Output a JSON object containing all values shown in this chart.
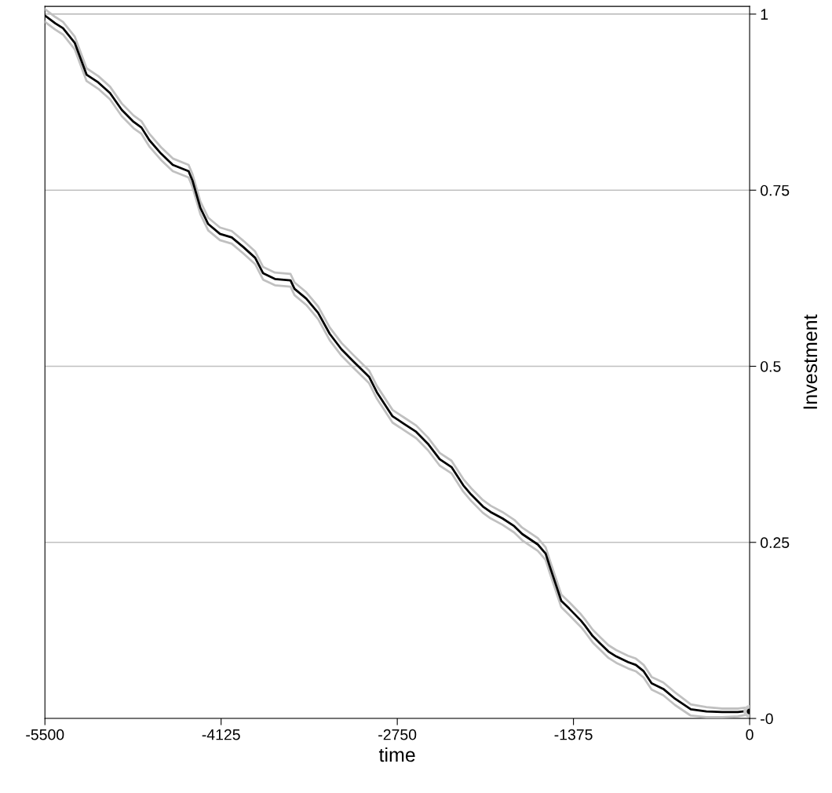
{
  "chart_data": {
    "type": "line",
    "xlabel": "time",
    "ylabel": "Investment",
    "grid": "y",
    "legend": false,
    "marker": "none",
    "line_style": "solid",
    "xlim": [
      -5500,
      0
    ],
    "xticks": [
      -5500,
      -4125,
      -2750,
      -1375,
      0
    ],
    "ylim": [
      0,
      1.011
    ],
    "yticks": [
      {
        "value": 0,
        "label": "-0"
      },
      0.25,
      0.5,
      0.75,
      1
    ],
    "x": [
      -5500,
      -5420,
      -5359,
      -5267,
      -5175,
      -5084,
      -4992,
      -4900,
      -4808,
      -4747,
      -4685,
      -4594,
      -4502,
      -4379,
      -4349,
      -4287,
      -4226,
      -4134,
      -4042,
      -3950,
      -3859,
      -3797,
      -3705,
      -3583,
      -3552,
      -3460,
      -3368,
      -3277,
      -3185,
      -3093,
      -2970,
      -2909,
      -2848,
      -2787,
      -2695,
      -2603,
      -2511,
      -2419,
      -2327,
      -2235,
      -2174,
      -2082,
      -2021,
      -1929,
      -1837,
      -1776,
      -1653,
      -1592,
      -1562,
      -1470,
      -1408,
      -1317,
      -1286,
      -1225,
      -1164,
      -1102,
      -1041,
      -949,
      -888,
      -827,
      -765,
      -674,
      -582,
      -459,
      -337,
      -214,
      -92,
      0
    ],
    "series": [
      {
        "color": "#c0c0c0",
        "values": [
          1.007,
          0.996,
          0.989,
          0.968,
          0.923,
          0.912,
          0.897,
          0.873,
          0.856,
          0.848,
          0.83,
          0.811,
          0.795,
          0.786,
          0.773,
          0.734,
          0.711,
          0.697,
          0.692,
          0.678,
          0.663,
          0.641,
          0.633,
          0.631,
          0.619,
          0.605,
          0.585,
          0.555,
          0.533,
          0.516,
          0.494,
          0.472,
          0.455,
          0.438,
          0.427,
          0.416,
          0.399,
          0.377,
          0.366,
          0.34,
          0.327,
          0.31,
          0.302,
          0.293,
          0.282,
          0.271,
          0.256,
          0.243,
          0.226,
          0.176,
          0.165,
          0.148,
          0.141,
          0.126,
          0.115,
          0.104,
          0.097,
          0.089,
          0.085,
          0.076,
          0.059,
          0.051,
          0.037,
          0.02,
          0.016,
          0.014,
          0.014,
          0.016
        ]
      },
      {
        "color": "#c0c0c0",
        "values": [
          0.989,
          0.978,
          0.971,
          0.95,
          0.905,
          0.894,
          0.879,
          0.855,
          0.838,
          0.83,
          0.812,
          0.793,
          0.777,
          0.768,
          0.755,
          0.716,
          0.693,
          0.679,
          0.674,
          0.66,
          0.645,
          0.623,
          0.615,
          0.613,
          0.601,
          0.587,
          0.567,
          0.537,
          0.515,
          0.498,
          0.476,
          0.454,
          0.437,
          0.42,
          0.409,
          0.398,
          0.381,
          0.359,
          0.348,
          0.322,
          0.309,
          0.292,
          0.284,
          0.275,
          0.264,
          0.253,
          0.238,
          0.225,
          0.208,
          0.158,
          0.147,
          0.13,
          0.123,
          0.108,
          0.097,
          0.086,
          0.079,
          0.071,
          0.067,
          0.058,
          0.041,
          0.033,
          0.019,
          0.004,
          0.002,
          0.002,
          0.003,
          0.006
        ]
      },
      {
        "color": "#000000",
        "values": [
          0.998,
          0.987,
          0.98,
          0.959,
          0.914,
          0.903,
          0.888,
          0.864,
          0.847,
          0.839,
          0.821,
          0.802,
          0.786,
          0.777,
          0.764,
          0.725,
          0.702,
          0.688,
          0.683,
          0.669,
          0.654,
          0.632,
          0.624,
          0.622,
          0.61,
          0.596,
          0.576,
          0.546,
          0.524,
          0.507,
          0.485,
          0.463,
          0.446,
          0.429,
          0.418,
          0.407,
          0.39,
          0.368,
          0.357,
          0.331,
          0.318,
          0.301,
          0.293,
          0.284,
          0.273,
          0.262,
          0.247,
          0.234,
          0.217,
          0.167,
          0.156,
          0.139,
          0.132,
          0.117,
          0.106,
          0.095,
          0.088,
          0.08,
          0.076,
          0.067,
          0.05,
          0.042,
          0.028,
          0.013,
          0.01,
          0.009,
          0.009,
          0.011
        ]
      },
      {
        "type": "scatter",
        "color": "#000000",
        "marker": "circle",
        "x": [
          0
        ],
        "values": [
          0.01
        ]
      }
    ]
  }
}
